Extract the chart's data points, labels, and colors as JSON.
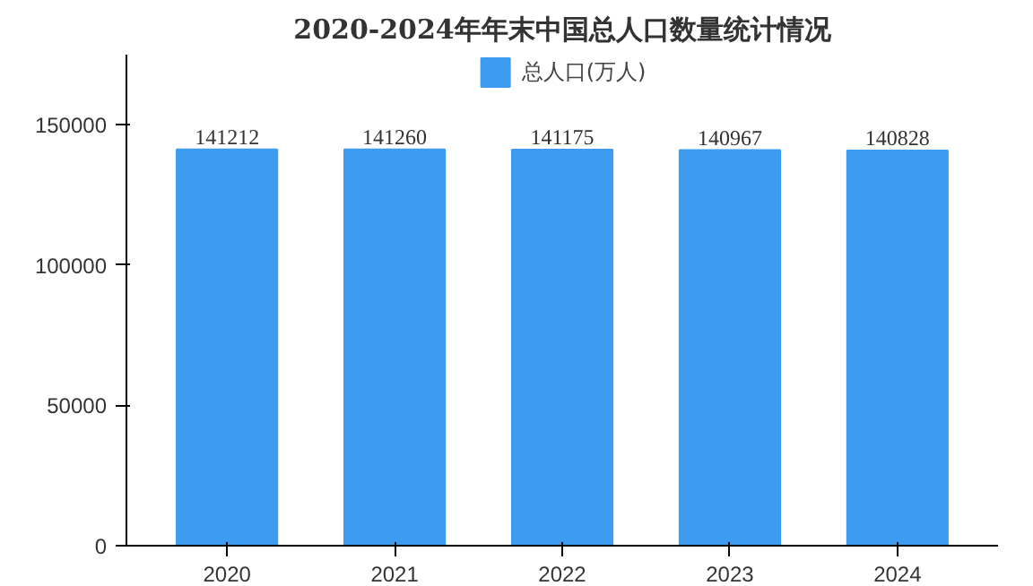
{
  "chart_data": {
    "type": "bar",
    "title": "2020-2024年年末中国总人口数量统计情况",
    "categories": [
      "2020",
      "2021",
      "2022",
      "2023",
      "2024"
    ],
    "series": [
      {
        "name": "总人口(万人)",
        "color": "#3d9cf0",
        "values": [
          141212,
          141260,
          141175,
          140967,
          140828
        ]
      }
    ],
    "ylim": [
      0,
      175000
    ],
    "yticks": [
      0,
      50000,
      100000,
      150000
    ],
    "data_labels": true,
    "legend": "top",
    "grid": false
  }
}
